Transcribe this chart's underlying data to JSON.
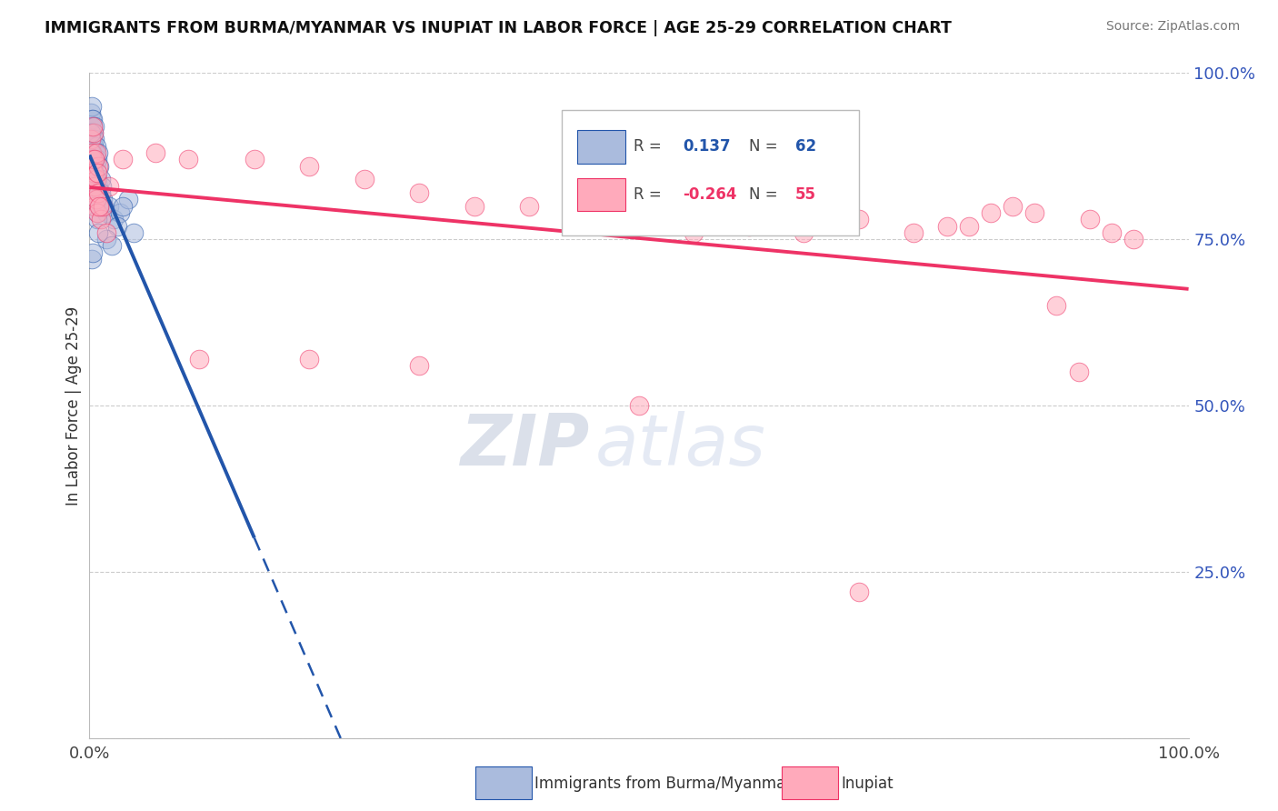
{
  "title": "IMMIGRANTS FROM BURMA/MYANMAR VS INUPIAT IN LABOR FORCE | AGE 25-29 CORRELATION CHART",
  "source_text": "Source: ZipAtlas.com",
  "ylabel": "In Labor Force | Age 25-29",
  "legend_blue_r": "0.137",
  "legend_blue_n": "62",
  "legend_pink_r": "-0.264",
  "legend_pink_n": "55",
  "blue_color": "#AABBDD",
  "pink_color": "#FFAABB",
  "trendline_blue": "#2255AA",
  "trendline_pink": "#EE3366",
  "watermark_zip": "ZIP",
  "watermark_atlas": "atlas",
  "blue_scatter_x": [
    0.001,
    0.001,
    0.001,
    0.002,
    0.002,
    0.002,
    0.002,
    0.002,
    0.003,
    0.003,
    0.003,
    0.003,
    0.003,
    0.003,
    0.004,
    0.004,
    0.004,
    0.004,
    0.005,
    0.005,
    0.005,
    0.005,
    0.005,
    0.005,
    0.006,
    0.006,
    0.006,
    0.007,
    0.007,
    0.007,
    0.008,
    0.008,
    0.009,
    0.009,
    0.01,
    0.01,
    0.011,
    0.012,
    0.013,
    0.015,
    0.018,
    0.022,
    0.028,
    0.035,
    0.025,
    0.03,
    0.04,
    0.015,
    0.02,
    0.01,
    0.007,
    0.008,
    0.009,
    0.005,
    0.006,
    0.004,
    0.003,
    0.002,
    0.001,
    0.001,
    0.002,
    0.003
  ],
  "blue_scatter_y": [
    0.94,
    0.92,
    0.9,
    0.93,
    0.91,
    0.88,
    0.95,
    0.89,
    0.92,
    0.9,
    0.87,
    0.85,
    0.93,
    0.88,
    0.91,
    0.86,
    0.89,
    0.84,
    0.88,
    0.85,
    0.92,
    0.83,
    0.9,
    0.87,
    0.86,
    0.82,
    0.89,
    0.84,
    0.79,
    0.87,
    0.83,
    0.88,
    0.82,
    0.86,
    0.8,
    0.84,
    0.83,
    0.81,
    0.8,
    0.79,
    0.8,
    0.78,
    0.79,
    0.81,
    0.77,
    0.8,
    0.76,
    0.75,
    0.74,
    0.82,
    0.78,
    0.76,
    0.8,
    0.84,
    0.81,
    0.85,
    0.86,
    0.87,
    0.88,
    0.91,
    0.72,
    0.73
  ],
  "pink_scatter_x": [
    0.001,
    0.002,
    0.002,
    0.003,
    0.003,
    0.004,
    0.004,
    0.005,
    0.005,
    0.006,
    0.006,
    0.007,
    0.008,
    0.01,
    0.012,
    0.015,
    0.018,
    0.008,
    0.006,
    0.004,
    0.003,
    0.005,
    0.007,
    0.009,
    0.03,
    0.06,
    0.09,
    0.15,
    0.2,
    0.25,
    0.3,
    0.35,
    0.4,
    0.45,
    0.5,
    0.55,
    0.6,
    0.65,
    0.7,
    0.75,
    0.78,
    0.8,
    0.82,
    0.84,
    0.86,
    0.88,
    0.9,
    0.91,
    0.93,
    0.95,
    0.1,
    0.2,
    0.3,
    0.5,
    0.7
  ],
  "pink_scatter_y": [
    0.9,
    0.88,
    0.86,
    0.84,
    0.87,
    0.82,
    0.85,
    0.8,
    0.83,
    0.81,
    0.84,
    0.79,
    0.82,
    0.78,
    0.8,
    0.76,
    0.83,
    0.86,
    0.88,
    0.91,
    0.92,
    0.87,
    0.85,
    0.8,
    0.87,
    0.88,
    0.87,
    0.87,
    0.86,
    0.84,
    0.82,
    0.8,
    0.8,
    0.78,
    0.78,
    0.76,
    0.77,
    0.76,
    0.78,
    0.76,
    0.77,
    0.77,
    0.79,
    0.8,
    0.79,
    0.65,
    0.55,
    0.78,
    0.76,
    0.75,
    0.57,
    0.57,
    0.56,
    0.5,
    0.22
  ],
  "ylim": [
    0.0,
    1.0
  ],
  "xlim": [
    0.0,
    1.0
  ],
  "yticks": [
    0.0,
    0.25,
    0.5,
    0.75,
    1.0
  ],
  "ytick_labels": [
    "",
    "25.0%",
    "50.0%",
    "75.0%",
    "100.0%"
  ],
  "xtick_labels": [
    "0.0%",
    "100.0%"
  ]
}
